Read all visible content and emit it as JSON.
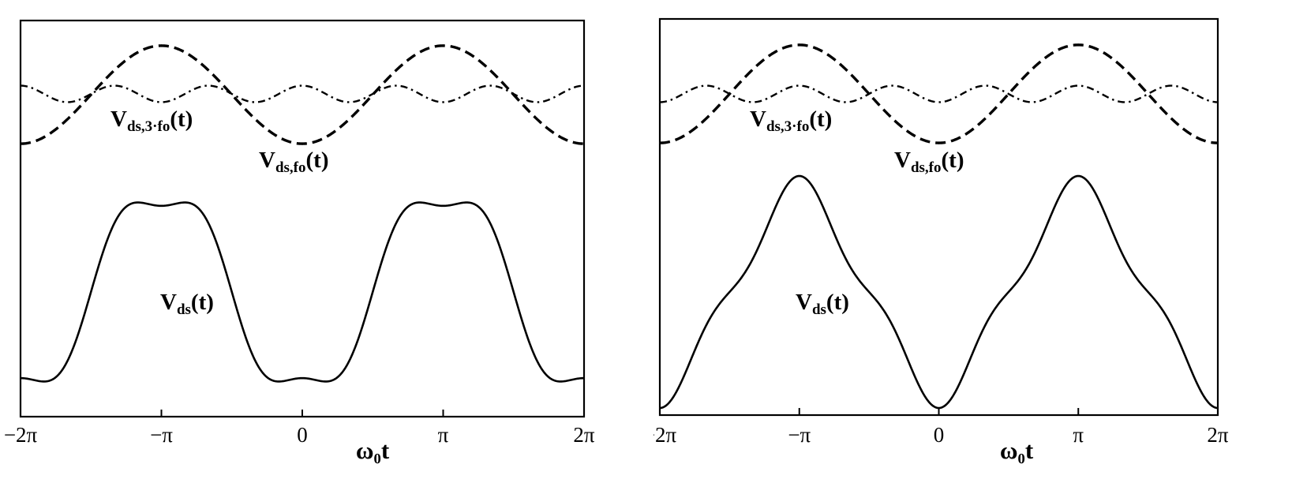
{
  "chart_data": [
    {
      "type": "line",
      "xlabel": "ω₀t",
      "x_ticks": [
        "−2π",
        "−π",
        "0",
        "π",
        "2π"
      ],
      "xlim": [
        -6.2832,
        6.2832
      ],
      "series": [
        {
          "name": "Vds,fo(t)",
          "style": "dashed",
          "formula": "-0.35*cos(x)",
          "x": [
            -6.2832,
            -4.7124,
            -3.1416,
            -1.5708,
            0,
            1.5708,
            3.1416,
            4.7124,
            6.2832
          ],
          "y": [
            -0.35,
            0,
            0.35,
            0,
            -0.35,
            0,
            0.35,
            0,
            -0.35
          ],
          "label": {
            "main": "V",
            "sub": "ds,fo",
            "tail": "(t)"
          }
        },
        {
          "name": "Vds,3·fo(t)",
          "style": "dash-dot",
          "formula": "0.055*cos(3x)",
          "x": [
            -6.2832,
            -5.236,
            -4.1888,
            -3.1416,
            -2.0944,
            -1.0472,
            0,
            1.0472,
            2.0944,
            3.1416,
            4.1888,
            5.236,
            6.2832
          ],
          "y": [
            0.055,
            -0.055,
            0.055,
            -0.055,
            0.055,
            -0.055,
            0.055,
            -0.055,
            0.055,
            -0.055,
            0.055,
            -0.055,
            0.055
          ],
          "label": {
            "main": "V",
            "sub": "ds,3·fo",
            "tail": "(t)"
          }
        },
        {
          "name": "Vds(t)",
          "style": "solid",
          "formula": "-cos(x) + (1/6)*cos(3x)",
          "x": [
            -6.2832,
            -5.236,
            -4.1888,
            -3.1416,
            -2.0944,
            -1.0472,
            0,
            1.0472,
            2.0944,
            3.1416,
            4.1888,
            5.236,
            6.2832
          ],
          "y": [
            -0.833,
            -0.667,
            0.667,
            0.833,
            0.667,
            -0.667,
            -0.833,
            -0.667,
            0.667,
            0.833,
            0.667,
            -0.667,
            -0.833
          ],
          "label": {
            "main": "V",
            "sub": "ds",
            "tail": "(t)"
          }
        }
      ]
    },
    {
      "type": "line",
      "xlabel": "ω₀t",
      "x_ticks": [
        "−2π",
        "−π",
        "0",
        "π",
        "2π"
      ],
      "xlim": [
        -6.2832,
        6.2832
      ],
      "series": [
        {
          "name": "Vds,fo(t)",
          "style": "dashed",
          "formula": "-0.35*cos(x)",
          "x": [
            -6.2832,
            -4.7124,
            -3.1416,
            -1.5708,
            0,
            1.5708,
            3.1416,
            4.7124,
            6.2832
          ],
          "y": [
            -0.35,
            0,
            0.35,
            0,
            -0.35,
            0,
            0.35,
            0,
            -0.35
          ],
          "label": {
            "main": "V",
            "sub": "ds,fo",
            "tail": "(t)"
          }
        },
        {
          "name": "Vds,3·fo(t)",
          "style": "dash-dot",
          "formula": "-0.055*cos(3x)",
          "x": [
            -6.2832,
            -5.236,
            -4.1888,
            -3.1416,
            -2.0944,
            -1.0472,
            0,
            1.0472,
            2.0944,
            3.1416,
            4.1888,
            5.236,
            6.2832
          ],
          "y": [
            -0.055,
            0.055,
            -0.055,
            0.055,
            -0.055,
            0.055,
            -0.055,
            0.055,
            -0.055,
            0.055,
            -0.055,
            0.055,
            -0.055
          ],
          "label": {
            "main": "V",
            "sub": "ds,3·fo",
            "tail": "(t)"
          }
        },
        {
          "name": "Vds(t)",
          "style": "solid",
          "formula": "-cos(x) - (1/6)*cos(3x)",
          "x": [
            -6.2832,
            -5.236,
            -4.1888,
            -3.1416,
            -2.0944,
            -1.0472,
            0,
            1.0472,
            2.0944,
            3.1416,
            4.1888,
            5.236,
            6.2832
          ],
          "y": [
            -1.167,
            -0.333,
            0.333,
            1.167,
            0.333,
            -0.333,
            -1.167,
            -0.333,
            0.333,
            1.167,
            0.333,
            -0.333,
            -1.167
          ],
          "label": {
            "main": "V",
            "sub": "ds",
            "tail": "(t)"
          }
        }
      ]
    }
  ]
}
